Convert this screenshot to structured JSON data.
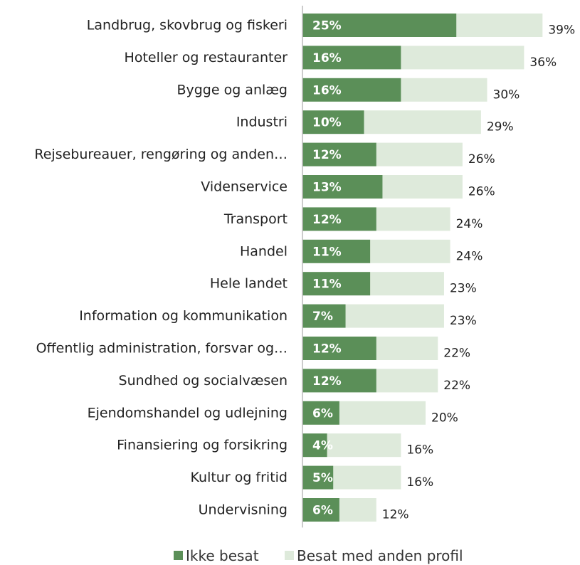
{
  "chart_data": {
    "type": "bar",
    "orientation": "horizontal",
    "stacked": true,
    "categories": [
      "Landbrug, skovbrug og fiskeri",
      "Hoteller og restauranter",
      "Bygge og anlæg",
      "Industri",
      "Rejsebureauer, rengøring og anden…",
      "Videnservice",
      "Transport",
      "Handel",
      "Hele landet",
      "Information og kommunikation",
      "Offentlig administration, forsvar og…",
      "Sundhed og socialvæsen",
      "Ejendomshandel og udlejning",
      "Finansiering og forsikring",
      "Kultur og fritid",
      "Undervisning"
    ],
    "series": [
      {
        "name": "Ikke besat",
        "color": "#5b8f58",
        "values": [
          25,
          16,
          16,
          10,
          12,
          13,
          12,
          11,
          11,
          7,
          12,
          12,
          6,
          4,
          5,
          6
        ],
        "labels": [
          "25%",
          "16%",
          "16%",
          "10%",
          "12%",
          "13%",
          "12%",
          "11%",
          "11%",
          "7%",
          "12%",
          "12%",
          "6%",
          "4%",
          "5%",
          "6%"
        ]
      },
      {
        "name": "Besat med anden profil",
        "color": "#deeadb",
        "values": [
          14,
          20,
          14,
          19,
          14,
          13,
          12,
          13,
          12,
          16,
          10,
          10,
          14,
          12,
          11,
          6
        ]
      }
    ],
    "totals": [
      39,
      36,
      30,
      29,
      26,
      26,
      24,
      24,
      23,
      23,
      22,
      22,
      20,
      16,
      16,
      12
    ],
    "total_labels": [
      "39%",
      "36%",
      "30%",
      "29%",
      "26%",
      "26%",
      "24%",
      "24%",
      "23%",
      "23%",
      "22%",
      "22%",
      "20%",
      "16%",
      "16%",
      "12%"
    ],
    "xlim": [
      0,
      40
    ],
    "grid": false,
    "legend": "bottom"
  }
}
